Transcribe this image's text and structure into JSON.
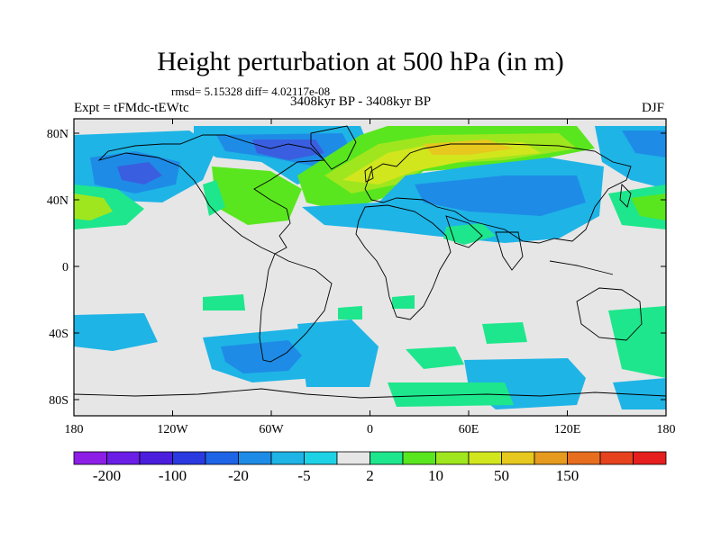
{
  "title": "Height perturbation at 500 hPa (in m)",
  "stats": "rmsd= 5.15328 diff= 4.02117e-08",
  "experiment": "Expt = tFMdc-tEWtc",
  "period": "3408kyr BP - 3408kyr BP",
  "season": "DJF",
  "map": {
    "lat_ticks": [
      "80N",
      "40N",
      "0",
      "40S",
      "80S"
    ],
    "lon_ticks": [
      "180",
      "120W",
      "60W",
      "0",
      "60E",
      "120E",
      "180"
    ],
    "background_color": "#e5e5e5"
  },
  "colorbar": {
    "colors": [
      "#8c1ee6",
      "#6a1ee6",
      "#4a1edc",
      "#2a3ae0",
      "#1e64e6",
      "#1e8ce6",
      "#1eb4e6",
      "#1ed2e6",
      "#e6e6e6",
      "#1ee68c",
      "#5ae61e",
      "#a0e61e",
      "#d2e61e",
      "#e6c81e",
      "#e69a1e",
      "#e66e1e",
      "#e6421e",
      "#e61e1e"
    ],
    "labels": [
      "-200",
      "-100",
      "-20",
      "-5",
      "2",
      "10",
      "50",
      "150"
    ]
  },
  "palette": {
    "neg_strong": "#3a5ee0",
    "neg_mid": "#1e8ce6",
    "neg_weak": "#1eb4e6",
    "neutral": "#e6e6e6",
    "pos_weak": "#1ee68c",
    "pos_mid": "#5ae61e",
    "pos_strong": "#a0e61e",
    "pos_top": "#d2e61e",
    "pos_peak": "#e6c81e"
  }
}
